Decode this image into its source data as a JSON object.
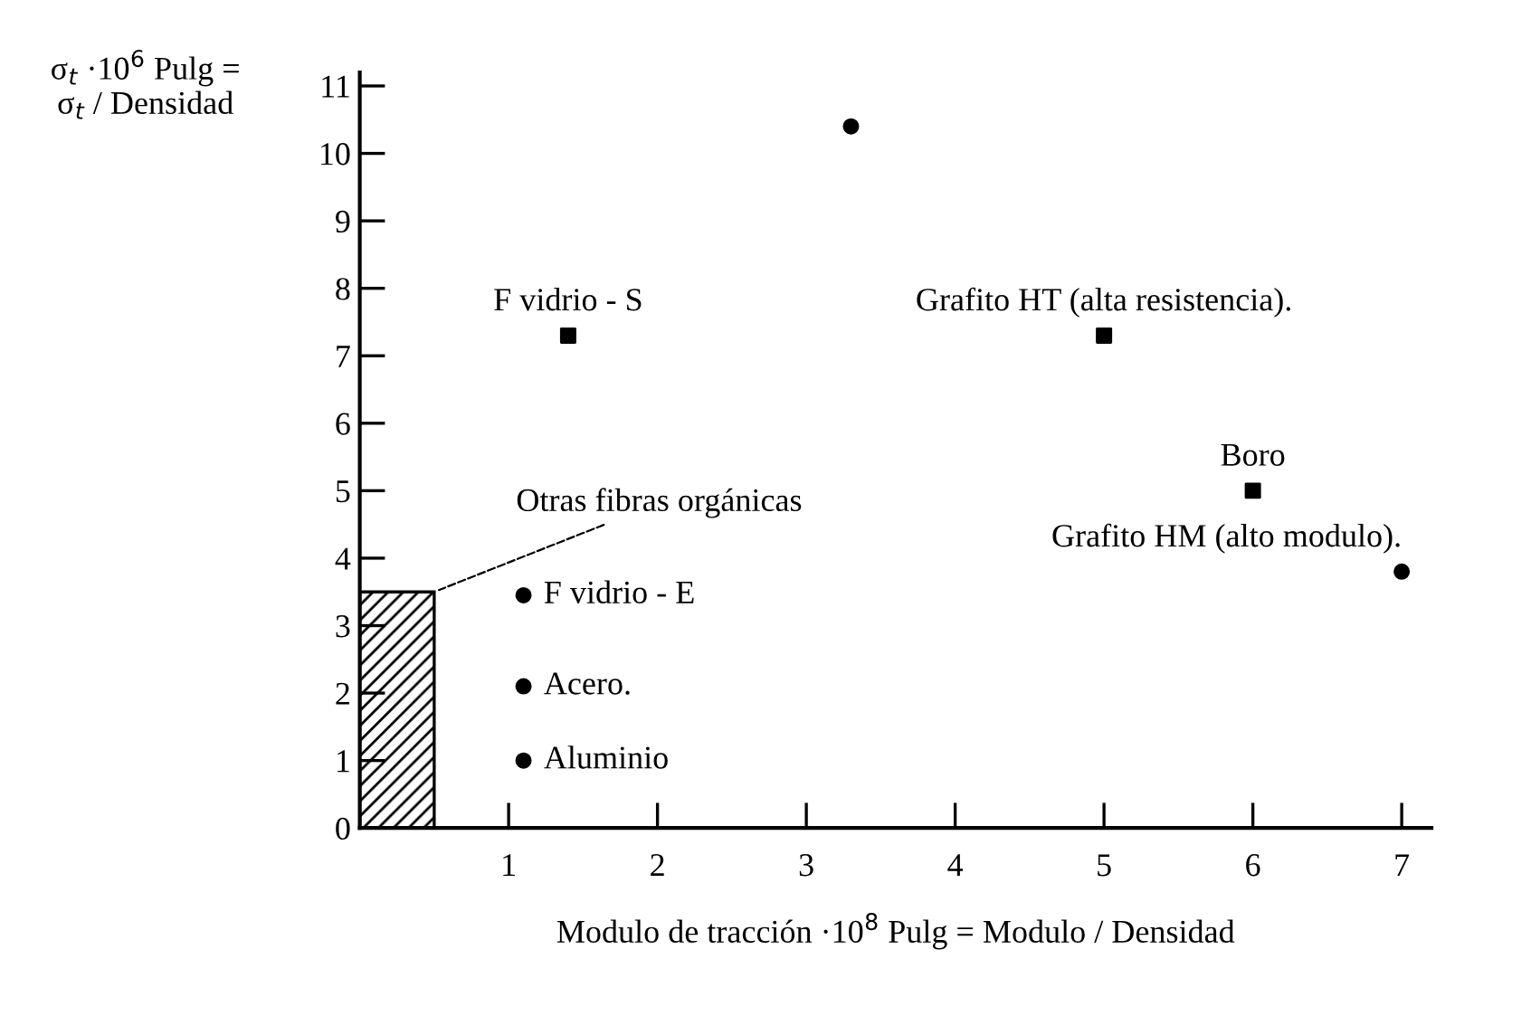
{
  "chart_data": {
    "type": "scatter",
    "xlabel": "Modulo de tracción ·10$^{8}$ Pulg = Modulo / Densidad",
    "ylabel": "σ$_{t}$ ·10$^{6}$ Pulg =\nσ$_{t}$ / Densidad",
    "xlim": [
      0,
      7.2
    ],
    "ylim": [
      0,
      11.2
    ],
    "xticks": [
      1,
      2,
      3,
      4,
      5,
      6,
      7
    ],
    "yticks": [
      0,
      1,
      2,
      3,
      4,
      5,
      6,
      7,
      8,
      9,
      10,
      11
    ],
    "grid": false,
    "series": [
      {
        "marker": "circle",
        "color": "#000000",
        "x": [
          3.3,
          7.0,
          1.1,
          1.1,
          1.1
        ],
        "values": [
          10.4,
          3.8,
          3.45,
          2.1,
          1.0
        ]
      },
      {
        "marker": "square",
        "color": "#000000",
        "x": [
          1.4,
          5.0,
          6.0
        ],
        "values": [
          7.3,
          7.3,
          5.0
        ]
      },
      {
        "type": "histogram",
        "color": "#000000",
        "bins": [
          0,
          0.5
        ],
        "values": [
          3.5
        ]
      }
    ],
    "annotations": [
      {
        "text": "F vidrio - S",
        "x": 1.4,
        "y": 7.3
      },
      {
        "text": "Grafito HT (alta resistencia).",
        "x": 5.0,
        "y": 7.3
      },
      {
        "text": "Boro",
        "x": 6.0,
        "y": 5.0
      },
      {
        "text": "Grafito HM (alto modulo).",
        "x": 7.0,
        "y": 3.8
      },
      {
        "text": "F vidrio - E",
        "x": 1.1,
        "y": 3.45
      },
      {
        "text": "Acero.",
        "x": 1.1,
        "y": 2.1
      },
      {
        "text": "Aluminio",
        "x": 1.1,
        "y": 1.0
      },
      {
        "text": "Otras fibras orgánicas",
        "x": 0.5,
        "y": 3.5
      }
    ]
  }
}
